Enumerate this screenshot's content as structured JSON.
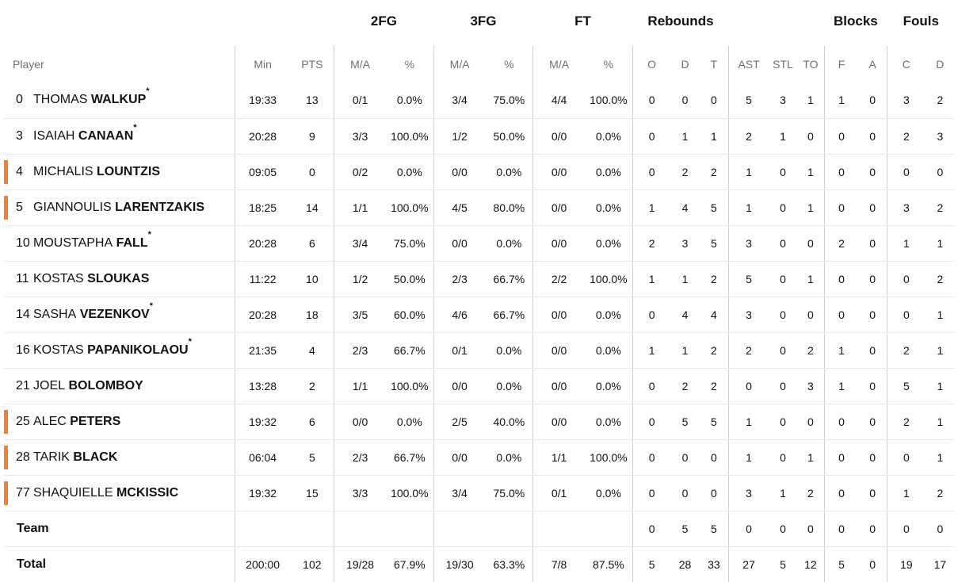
{
  "headers": {
    "groups": {
      "fg2": "2FG",
      "fg3": "3FG",
      "ft": "FT",
      "rebounds": "Rebounds",
      "blocks": "Blocks",
      "fouls": "Fouls"
    },
    "columns": {
      "player": "Player",
      "min": "Min",
      "pts": "PTS",
      "fg2_ma": "M/A",
      "fg2_pct": "%",
      "fg3_ma": "M/A",
      "fg3_pct": "%",
      "ft_ma": "M/A",
      "ft_pct": "%",
      "reb_o": "O",
      "reb_d": "D",
      "reb_t": "T",
      "ast": "AST",
      "stl": "STL",
      "to": "TO",
      "blk_f": "F",
      "blk_a": "A",
      "foul_c": "C",
      "foul_d": "D"
    }
  },
  "colors": {
    "accent_bar": "#f47f32",
    "separator": "#cfcfcf",
    "row_border": "#e9e9e9"
  },
  "players": [
    {
      "num": "0",
      "first": "THOMAS",
      "last": "WALKUP",
      "star": "*",
      "bar": false,
      "min": "19:33",
      "pts": "13",
      "fg2_ma": "0/1",
      "fg2_pct": "0.0%",
      "fg3_ma": "3/4",
      "fg3_pct": "75.0%",
      "ft_ma": "4/4",
      "ft_pct": "100.0%",
      "reb_o": "0",
      "reb_d": "0",
      "reb_t": "0",
      "ast": "5",
      "stl": "3",
      "to": "1",
      "blk_f": "1",
      "blk_a": "0",
      "foul_c": "3",
      "foul_d": "2"
    },
    {
      "num": "3",
      "first": "ISAIAH",
      "last": "CANAAN",
      "star": "*",
      "bar": false,
      "min": "20:28",
      "pts": "9",
      "fg2_ma": "3/3",
      "fg2_pct": "100.0%",
      "fg3_ma": "1/2",
      "fg3_pct": "50.0%",
      "ft_ma": "0/0",
      "ft_pct": "0.0%",
      "reb_o": "0",
      "reb_d": "1",
      "reb_t": "1",
      "ast": "2",
      "stl": "1",
      "to": "0",
      "blk_f": "0",
      "blk_a": "0",
      "foul_c": "2",
      "foul_d": "3"
    },
    {
      "num": "4",
      "first": "MICHALIS",
      "last": "LOUNTZIS",
      "star": "",
      "bar": true,
      "min": "09:05",
      "pts": "0",
      "fg2_ma": "0/2",
      "fg2_pct": "0.0%",
      "fg3_ma": "0/0",
      "fg3_pct": "0.0%",
      "ft_ma": "0/0",
      "ft_pct": "0.0%",
      "reb_o": "0",
      "reb_d": "2",
      "reb_t": "2",
      "ast": "1",
      "stl": "0",
      "to": "1",
      "blk_f": "0",
      "blk_a": "0",
      "foul_c": "0",
      "foul_d": "0"
    },
    {
      "num": "5",
      "first": "GIANNOULIS",
      "last": "LARENTZAKIS",
      "star": "",
      "bar": true,
      "min": "18:25",
      "pts": "14",
      "fg2_ma": "1/1",
      "fg2_pct": "100.0%",
      "fg3_ma": "4/5",
      "fg3_pct": "80.0%",
      "ft_ma": "0/0",
      "ft_pct": "0.0%",
      "reb_o": "1",
      "reb_d": "4",
      "reb_t": "5",
      "ast": "1",
      "stl": "0",
      "to": "1",
      "blk_f": "0",
      "blk_a": "0",
      "foul_c": "3",
      "foul_d": "2"
    },
    {
      "num": "10",
      "first": "MOUSTAPHA",
      "last": "FALL",
      "star": "*",
      "bar": false,
      "min": "20:28",
      "pts": "6",
      "fg2_ma": "3/4",
      "fg2_pct": "75.0%",
      "fg3_ma": "0/0",
      "fg3_pct": "0.0%",
      "ft_ma": "0/0",
      "ft_pct": "0.0%",
      "reb_o": "2",
      "reb_d": "3",
      "reb_t": "5",
      "ast": "3",
      "stl": "0",
      "to": "0",
      "blk_f": "2",
      "blk_a": "0",
      "foul_c": "1",
      "foul_d": "1"
    },
    {
      "num": "11",
      "first": "KOSTAS",
      "last": "SLOUKAS",
      "star": "",
      "bar": false,
      "min": "11:22",
      "pts": "10",
      "fg2_ma": "1/2",
      "fg2_pct": "50.0%",
      "fg3_ma": "2/3",
      "fg3_pct": "66.7%",
      "ft_ma": "2/2",
      "ft_pct": "100.0%",
      "reb_o": "1",
      "reb_d": "1",
      "reb_t": "2",
      "ast": "5",
      "stl": "0",
      "to": "1",
      "blk_f": "0",
      "blk_a": "0",
      "foul_c": "0",
      "foul_d": "2"
    },
    {
      "num": "14",
      "first": "SASHA",
      "last": "VEZENKOV",
      "star": "*",
      "bar": false,
      "min": "20:28",
      "pts": "18",
      "fg2_ma": "3/5",
      "fg2_pct": "60.0%",
      "fg3_ma": "4/6",
      "fg3_pct": "66.7%",
      "ft_ma": "0/0",
      "ft_pct": "0.0%",
      "reb_o": "0",
      "reb_d": "4",
      "reb_t": "4",
      "ast": "3",
      "stl": "0",
      "to": "0",
      "blk_f": "0",
      "blk_a": "0",
      "foul_c": "0",
      "foul_d": "1"
    },
    {
      "num": "16",
      "first": "KOSTAS",
      "last": "PAPANIKOLAOU",
      "star": "*",
      "bar": false,
      "min": "21:35",
      "pts": "4",
      "fg2_ma": "2/3",
      "fg2_pct": "66.7%",
      "fg3_ma": "0/1",
      "fg3_pct": "0.0%",
      "ft_ma": "0/0",
      "ft_pct": "0.0%",
      "reb_o": "1",
      "reb_d": "1",
      "reb_t": "2",
      "ast": "2",
      "stl": "0",
      "to": "2",
      "blk_f": "1",
      "blk_a": "0",
      "foul_c": "2",
      "foul_d": "1"
    },
    {
      "num": "21",
      "first": "JOEL",
      "last": "BOLOMBOY",
      "star": "",
      "bar": false,
      "min": "13:28",
      "pts": "2",
      "fg2_ma": "1/1",
      "fg2_pct": "100.0%",
      "fg3_ma": "0/0",
      "fg3_pct": "0.0%",
      "ft_ma": "0/0",
      "ft_pct": "0.0%",
      "reb_o": "0",
      "reb_d": "2",
      "reb_t": "2",
      "ast": "0",
      "stl": "0",
      "to": "3",
      "blk_f": "1",
      "blk_a": "0",
      "foul_c": "5",
      "foul_d": "1"
    },
    {
      "num": "25",
      "first": "ALEC",
      "last": "PETERS",
      "star": "",
      "bar": true,
      "min": "19:32",
      "pts": "6",
      "fg2_ma": "0/0",
      "fg2_pct": "0.0%",
      "fg3_ma": "2/5",
      "fg3_pct": "40.0%",
      "ft_ma": "0/0",
      "ft_pct": "0.0%",
      "reb_o": "0",
      "reb_d": "5",
      "reb_t": "5",
      "ast": "1",
      "stl": "0",
      "to": "0",
      "blk_f": "0",
      "blk_a": "0",
      "foul_c": "2",
      "foul_d": "1"
    },
    {
      "num": "28",
      "first": "TARIK",
      "last": "BLACK",
      "star": "",
      "bar": true,
      "min": "06:04",
      "pts": "5",
      "fg2_ma": "2/3",
      "fg2_pct": "66.7%",
      "fg3_ma": "0/0",
      "fg3_pct": "0.0%",
      "ft_ma": "1/1",
      "ft_pct": "100.0%",
      "reb_o": "0",
      "reb_d": "0",
      "reb_t": "0",
      "ast": "1",
      "stl": "0",
      "to": "1",
      "blk_f": "0",
      "blk_a": "0",
      "foul_c": "0",
      "foul_d": "1"
    },
    {
      "num": "77",
      "first": "SHAQUIELLE",
      "last": "MCKISSIC",
      "star": "",
      "bar": true,
      "min": "19:32",
      "pts": "15",
      "fg2_ma": "3/3",
      "fg2_pct": "100.0%",
      "fg3_ma": "3/4",
      "fg3_pct": "75.0%",
      "ft_ma": "0/1",
      "ft_pct": "0.0%",
      "reb_o": "0",
      "reb_d": "0",
      "reb_t": "0",
      "ast": "3",
      "stl": "1",
      "to": "2",
      "blk_f": "0",
      "blk_a": "0",
      "foul_c": "1",
      "foul_d": "2"
    }
  ],
  "team_row": {
    "label": "Team",
    "min": "",
    "pts": "",
    "fg2_ma": "",
    "fg2_pct": "",
    "fg3_ma": "",
    "fg3_pct": "",
    "ft_ma": "",
    "ft_pct": "",
    "reb_o": "0",
    "reb_d": "5",
    "reb_t": "5",
    "ast": "0",
    "stl": "0",
    "to": "0",
    "blk_f": "0",
    "blk_a": "0",
    "foul_c": "0",
    "foul_d": "0"
  },
  "total_row": {
    "label": "Total",
    "min": "200:00",
    "pts": "102",
    "fg2_ma": "19/28",
    "fg2_pct": "67.9%",
    "fg3_ma": "19/30",
    "fg3_pct": "63.3%",
    "ft_ma": "7/8",
    "ft_pct": "87.5%",
    "reb_o": "5",
    "reb_d": "28",
    "reb_t": "33",
    "ast": "27",
    "stl": "5",
    "to": "12",
    "blk_f": "5",
    "blk_a": "0",
    "foul_c": "19",
    "foul_d": "17"
  }
}
